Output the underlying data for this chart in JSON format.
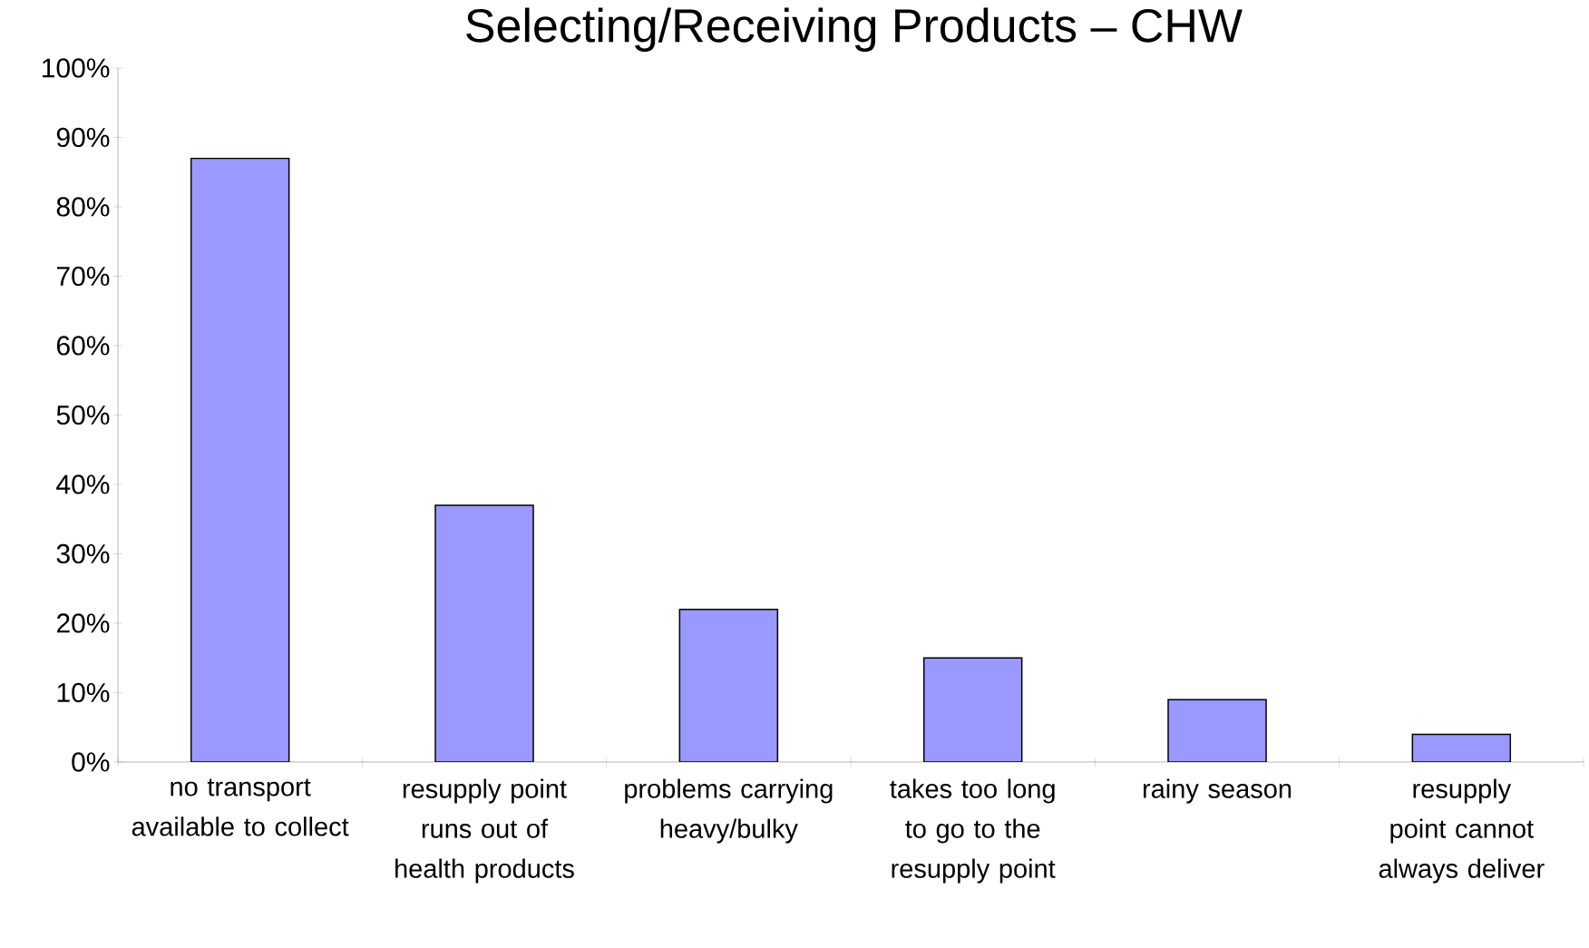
{
  "chart_data": {
    "type": "bar",
    "title": "Selecting/Receiving Products – CHW",
    "categories": [
      "no transport available to collect",
      "resupply point runs out of health products",
      "problems carrying heavy/bulky",
      "takes too long to go to the resupply point",
      "rainy season",
      "resupply point cannot always deliver"
    ],
    "values": [
      87,
      37,
      22,
      15,
      9,
      4
    ],
    "color": "#9999ff",
    "ylim": [
      0,
      100
    ],
    "yticks": [
      {
        "value": 0,
        "label": "0%"
      },
      {
        "value": 10,
        "label": "10%"
      },
      {
        "value": 20,
        "label": "20%"
      },
      {
        "value": 30,
        "label": "30%"
      },
      {
        "value": 40,
        "label": "40%"
      },
      {
        "value": 50,
        "label": "50%"
      },
      {
        "value": 60,
        "label": "60%"
      },
      {
        "value": 70,
        "label": "70%"
      },
      {
        "value": 80,
        "label": "80%"
      },
      {
        "value": 90,
        "label": "90%"
      },
      {
        "value": 100,
        "label": "100%"
      }
    ],
    "grid": false
  }
}
